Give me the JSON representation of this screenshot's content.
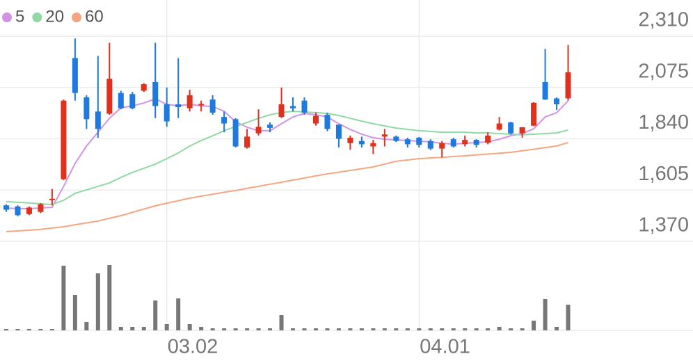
{
  "chart_data": {
    "type": "candlestick",
    "categories": [
      null,
      null,
      null,
      null,
      null,
      null,
      null,
      null,
      null,
      null,
      null,
      null,
      null,
      null,
      "03.02",
      null,
      null,
      null,
      null,
      null,
      null,
      null,
      null,
      null,
      null,
      null,
      null,
      null,
      null,
      null,
      null,
      null,
      null,
      null,
      null,
      null,
      "04.01",
      null,
      null,
      null,
      null,
      null,
      null,
      null,
      null,
      null,
      null,
      null,
      null,
      null
    ],
    "open": [
      1535,
      1530,
      1495,
      1505,
      1560,
      1655,
      2210,
      2030,
      1965,
      1955,
      2050,
      2045,
      2060,
      2100,
      1998,
      1998,
      1980,
      1995,
      2020,
      1940,
      1930,
      1800,
      1865,
      1905,
      1940,
      1990,
      2015,
      1910,
      1950,
      1905,
      1820,
      1830,
      1805,
      1850,
      1850,
      1838,
      1845,
      1830,
      1795,
      1838,
      1815,
      1835,
      1822,
      1882,
      1915,
      1865,
      1900,
      2100,
      2025,
      2025
    ],
    "high": [
      1540,
      1535,
      1530,
      1545,
      1610,
      2020,
      2300,
      2040,
      2220,
      2280,
      2060,
      2055,
      2095,
      2280,
      2075,
      2210,
      2065,
      2015,
      2040,
      1965,
      1935,
      1885,
      1975,
      1915,
      2075,
      2030,
      2030,
      1960,
      1960,
      1905,
      1855,
      1850,
      1835,
      1885,
      1855,
      1845,
      1848,
      1838,
      1830,
      1845,
      1855,
      1838,
      1870,
      1940,
      1918,
      1893,
      2008,
      2252,
      2030,
      2270
    ],
    "low": [
      1505,
      1485,
      1490,
      1500,
      1535,
      1650,
      2015,
      1885,
      1845,
      1950,
      1975,
      1975,
      2055,
      1935,
      1895,
      1935,
      1965,
      1965,
      1950,
      1870,
      1800,
      1795,
      1855,
      1870,
      1935,
      1965,
      1950,
      1900,
      1875,
      1800,
      1790,
      1800,
      1770,
      1805,
      1825,
      1800,
      1800,
      1788,
      1755,
      1800,
      1805,
      1800,
      1815,
      1878,
      1860,
      1845,
      1898,
      2018,
      1972,
      2015
    ],
    "close": [
      1515,
      1490,
      1525,
      1540,
      1565,
      2015,
      2050,
      1930,
      1885,
      2115,
      1980,
      1980,
      2090,
      1990,
      1920,
      1985,
      2040,
      2000,
      1960,
      1910,
      1805,
      1850,
      1895,
      1890,
      1998,
      1980,
      1960,
      1945,
      1885,
      1840,
      1845,
      1815,
      1820,
      1860,
      1830,
      1815,
      1812,
      1795,
      1820,
      1805,
      1835,
      1812,
      1855,
      1910,
      1865,
      1893,
      2005,
      2020,
      1998,
      2145
    ],
    "volume": [
      20000,
      20000,
      20000,
      20000,
      20000,
      930000,
      510000,
      120000,
      820000,
      940000,
      50000,
      50000,
      50000,
      430000,
      90000,
      460000,
      90000,
      50000,
      30000,
      30000,
      30000,
      30000,
      30000,
      30000,
      220000,
      30000,
      30000,
      30000,
      30000,
      30000,
      30000,
      30000,
      30000,
      30000,
      30000,
      30000,
      30000,
      30000,
      30000,
      30000,
      30000,
      30000,
      30000,
      50000,
      30000,
      30000,
      140000,
      450000,
      50000,
      370000
    ],
    "up_color": "#e0301e",
    "down_color": "#1f7ae0",
    "volume_color": "#777777",
    "ylim": [
      1370,
      2476
    ],
    "yticks": [
      {
        "value": 1370,
        "label": "1,370"
      },
      {
        "value": 1605,
        "label": "1,605"
      },
      {
        "value": 1840,
        "label": "1,840"
      },
      {
        "value": 2075,
        "label": "2,075"
      },
      {
        "value": 2310,
        "label": "2,310"
      }
    ],
    "volume_ylim": [
      0,
      1280000
    ],
    "grid": true,
    "legend": "top-left",
    "moving_averages": [
      {
        "name": "5",
        "color": "#d292e6",
        "values": [
          1523,
          1520,
          1520,
          1523,
          1526,
          1622,
          1727,
          1807,
          1870,
          1934,
          1982,
          1991,
          2004,
          2023,
          1998,
          1991,
          1998,
          1991,
          1988,
          1966,
          1918,
          1893,
          1877,
          1877,
          1909,
          1940,
          1956,
          1950,
          1940,
          1909,
          1883,
          1861,
          1845,
          1838,
          1835,
          1832,
          1829,
          1826,
          1819,
          1816,
          1819,
          1823,
          1826,
          1838,
          1854,
          1864,
          1886,
          1940,
          1960,
          2014
        ]
      },
      {
        "name": "20",
        "color": "#8fd9a4",
        "values": [
          1552,
          1549,
          1546,
          1542,
          1539,
          1558,
          1590,
          1606,
          1622,
          1638,
          1663,
          1686,
          1705,
          1724,
          1749,
          1775,
          1807,
          1832,
          1854,
          1877,
          1896,
          1915,
          1934,
          1950,
          1960,
          1966,
          1963,
          1960,
          1956,
          1947,
          1934,
          1921,
          1909,
          1899,
          1889,
          1883,
          1877,
          1874,
          1870,
          1870,
          1870,
          1867,
          1867,
          1864,
          1861,
          1858,
          1861,
          1864,
          1867,
          1880
        ]
      },
      {
        "name": "60",
        "color": "#f4a582",
        "values": [
          1415,
          1418,
          1421,
          1425,
          1431,
          1437,
          1446,
          1455,
          1463,
          1476,
          1488,
          1503,
          1518,
          1533,
          1545,
          1556,
          1568,
          1577,
          1586,
          1595,
          1603,
          1613,
          1622,
          1632,
          1641,
          1651,
          1660,
          1670,
          1679,
          1687,
          1695,
          1703,
          1711,
          1724,
          1737,
          1743,
          1749,
          1752,
          1755,
          1759,
          1762,
          1766,
          1770,
          1774,
          1778,
          1785,
          1792,
          1800,
          1807,
          1823
        ]
      }
    ]
  }
}
